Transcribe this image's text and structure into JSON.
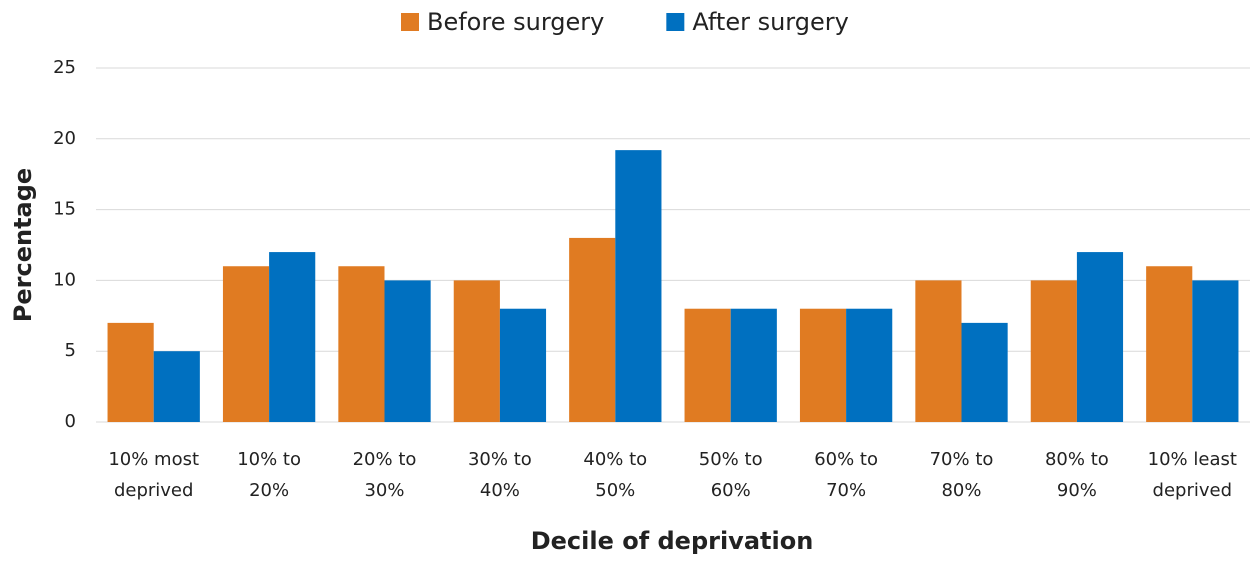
{
  "chart_data": {
    "type": "bar",
    "categories": [
      "10% most deprived",
      "10% to 20%",
      "20% to 30%",
      "30% to 40%",
      "40% to 50%",
      "50% to 60%",
      "60% to 70%",
      "70% to 80%",
      "80% to 90%",
      "10% least deprived"
    ],
    "series": [
      {
        "name": "Before surgery",
        "color": "#e07b22",
        "values": [
          7,
          11,
          11,
          10,
          13,
          8,
          8,
          10,
          10,
          11
        ]
      },
      {
        "name": "After surgery",
        "color": "#0070c0",
        "values": [
          5,
          12,
          10,
          8,
          19.2,
          8,
          8,
          7,
          12,
          10
        ]
      }
    ],
    "x_label": "Decile of deprivation",
    "y_label": "Percentage",
    "ylim": [
      0,
      25
    ],
    "yticks": [
      0,
      5,
      10,
      15,
      20,
      25
    ],
    "grid": true,
    "legend": "top"
  }
}
